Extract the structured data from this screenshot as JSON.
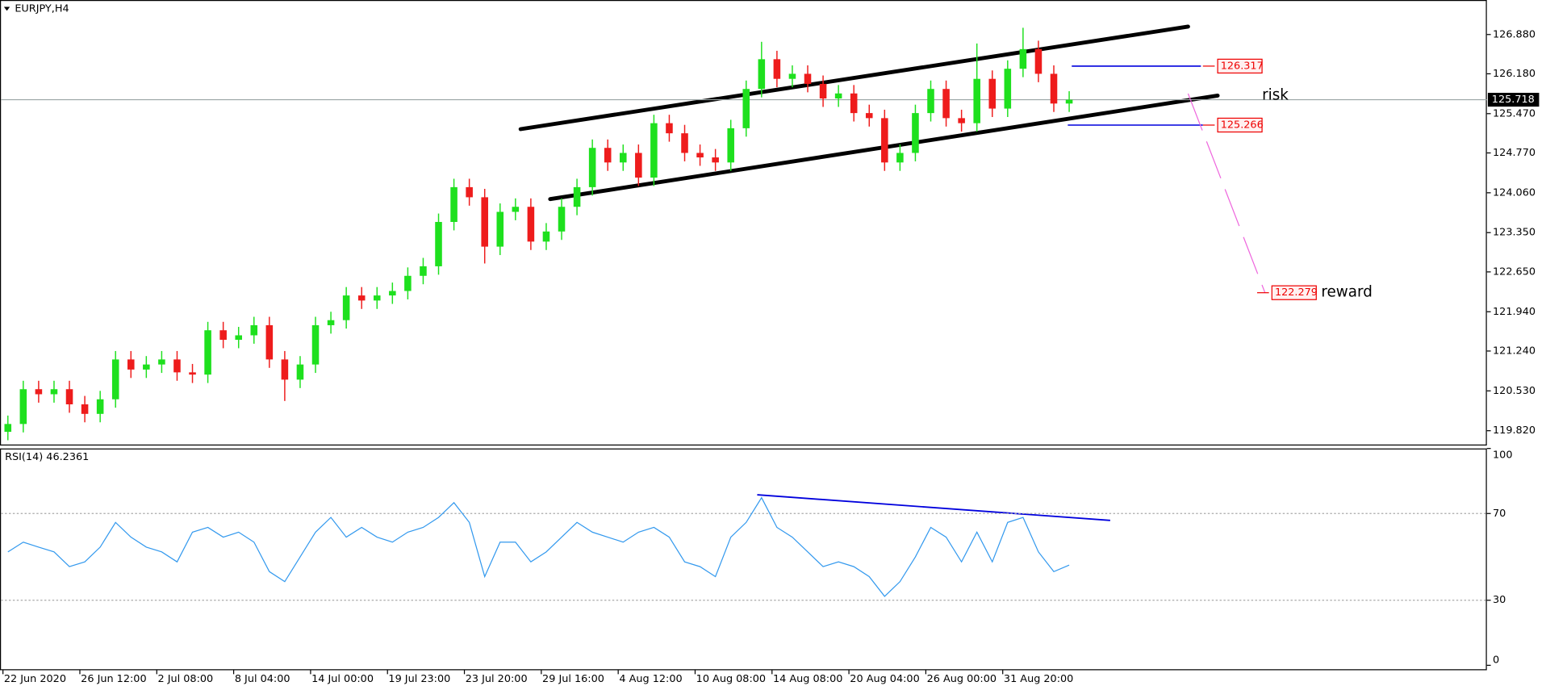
{
  "chart_data": {
    "type": "candlestick",
    "title": "EURJPY,H4",
    "categories": [
      "22 Jun 2020",
      null,
      null,
      null,
      null,
      "26 Jun 12:00",
      null,
      null,
      null,
      null,
      "2 Jul 08:00",
      null,
      null,
      null,
      null,
      "8 Jul 04:00",
      null,
      null,
      null,
      null,
      "14 Jul 00:00",
      null,
      null,
      null,
      null,
      "19 Jul 23:00",
      null,
      null,
      null,
      null,
      "23 Jul 20:00",
      null,
      null,
      null,
      null,
      "29 Jul 16:00",
      null,
      null,
      null,
      null,
      "4 Aug 12:00",
      null,
      null,
      null,
      null,
      "10 Aug 08:00",
      null,
      null,
      null,
      null,
      "14 Aug 08:00",
      null,
      null,
      null,
      null,
      "20 Aug 04:00",
      null,
      null,
      null,
      null,
      "26 Aug 00:00",
      null,
      null,
      null,
      null,
      "31 Aug 20:00",
      null,
      null,
      null,
      null
    ],
    "open": [
      119.8,
      119.94,
      120.56,
      120.47,
      120.56,
      120.29,
      120.12,
      120.38,
      121.09,
      120.91,
      121.0,
      121.09,
      120.86,
      120.82,
      121.61,
      121.44,
      121.52,
      121.7,
      121.09,
      120.73,
      121.0,
      121.7,
      121.79,
      122.23,
      122.14,
      122.23,
      122.31,
      122.58,
      122.75,
      123.54,
      124.16,
      123.98,
      123.1,
      123.72,
      123.81,
      123.19,
      123.37,
      123.81,
      124.16,
      124.86,
      124.6,
      124.77,
      124.33,
      125.3,
      125.12,
      124.77,
      124.69,
      124.6,
      125.21,
      125.91,
      126.44,
      126.09,
      126.18,
      126.0,
      125.74,
      125.83,
      125.48,
      125.39,
      124.6,
      124.77,
      125.48,
      125.91,
      125.39,
      125.3,
      126.09,
      125.56,
      126.27,
      126.62,
      126.18,
      125.65
    ],
    "high": [
      120.09,
      120.71,
      120.71,
      120.71,
      120.71,
      120.44,
      120.53,
      121.24,
      121.24,
      121.15,
      121.24,
      121.24,
      121.01,
      121.76,
      121.76,
      121.67,
      121.85,
      121.85,
      121.24,
      121.15,
      121.85,
      121.94,
      122.38,
      122.38,
      122.38,
      122.46,
      122.73,
      122.9,
      123.69,
      124.31,
      124.31,
      124.13,
      123.87,
      123.96,
      123.96,
      123.52,
      123.96,
      124.31,
      125.01,
      125.01,
      124.92,
      124.92,
      125.45,
      125.45,
      125.27,
      124.92,
      124.84,
      125.36,
      126.06,
      126.75,
      126.59,
      126.33,
      126.33,
      126.15,
      125.98,
      125.98,
      125.63,
      125.54,
      124.92,
      125.63,
      126.06,
      126.06,
      125.54,
      126.72,
      126.24,
      126.42,
      127.0,
      126.77,
      126.33,
      125.87
    ],
    "low": [
      119.65,
      119.79,
      120.32,
      120.32,
      120.14,
      119.97,
      119.97,
      120.23,
      120.76,
      120.76,
      120.85,
      120.71,
      120.67,
      120.67,
      121.29,
      121.29,
      121.37,
      120.94,
      120.35,
      120.58,
      120.85,
      121.55,
      121.64,
      121.99,
      121.99,
      122.08,
      122.16,
      122.43,
      122.6,
      123.39,
      123.83,
      122.8,
      122.95,
      123.57,
      123.04,
      123.04,
      123.22,
      123.66,
      124.01,
      124.45,
      124.45,
      124.18,
      124.18,
      124.97,
      124.62,
      124.54,
      124.45,
      124.45,
      125.06,
      125.76,
      125.94,
      125.94,
      125.85,
      125.59,
      125.59,
      125.33,
      125.24,
      124.45,
      124.45,
      124.62,
      125.33,
      125.24,
      125.15,
      125.15,
      125.41,
      125.41,
      126.12,
      126.03,
      125.5,
      125.5
    ],
    "close": [
      119.94,
      120.56,
      120.47,
      120.56,
      120.29,
      120.12,
      120.38,
      121.09,
      120.91,
      121.0,
      121.09,
      120.86,
      120.82,
      121.61,
      121.44,
      121.52,
      121.7,
      121.09,
      120.73,
      121.0,
      121.7,
      121.79,
      122.23,
      122.14,
      122.23,
      122.31,
      122.58,
      122.75,
      123.54,
      124.16,
      123.98,
      123.1,
      123.72,
      123.81,
      123.19,
      123.37,
      123.81,
      124.16,
      124.86,
      124.6,
      124.77,
      124.33,
      125.3,
      125.12,
      124.77,
      124.69,
      124.6,
      125.21,
      125.91,
      126.44,
      126.09,
      126.18,
      126.0,
      125.74,
      125.83,
      125.48,
      125.39,
      124.6,
      124.77,
      125.48,
      125.91,
      125.39,
      125.3,
      126.09,
      125.56,
      126.27,
      126.62,
      126.18,
      125.65,
      125.718
    ],
    "up_color": "#1ee01e",
    "down_color": "#ee1c1c",
    "ylim": [
      119.574,
      127.495
    ],
    "yticks": [
      {
        "value": 126.88,
        "label": "126.880"
      },
      {
        "value": 126.18,
        "label": "126.180"
      },
      {
        "value": 125.47,
        "label": "125.470"
      },
      {
        "value": 124.77,
        "label": "124.770"
      },
      {
        "value": 124.06,
        "label": "124.060"
      },
      {
        "value": 123.35,
        "label": "123.350"
      },
      {
        "value": 122.65,
        "label": "122.650"
      },
      {
        "value": 121.94,
        "label": "121.940"
      },
      {
        "value": 121.24,
        "label": "121.240"
      },
      {
        "value": 120.53,
        "label": "120.530"
      },
      {
        "value": 119.82,
        "label": "119.820"
      }
    ],
    "current_price": 125.718,
    "levels": [
      126.317,
      125.266,
      122.279
    ],
    "annotations": [
      "risk",
      "reward"
    ],
    "rsi": {
      "label": "RSI(14) 46.2361",
      "color": "#3399ee",
      "values": [
        52.3,
        56.8,
        54.5,
        52.3,
        45.5,
        47.7,
        54.5,
        65.9,
        59.1,
        54.5,
        52.3,
        47.7,
        61.4,
        63.6,
        59.1,
        61.4,
        56.8,
        43.2,
        38.6,
        50.0,
        61.4,
        68.2,
        59.1,
        63.6,
        59.1,
        56.8,
        61.4,
        63.6,
        68.2,
        75.0,
        65.9,
        40.9,
        56.8,
        56.8,
        47.7,
        52.3,
        59.1,
        65.9,
        61.4,
        59.1,
        56.8,
        61.4,
        63.6,
        59.1,
        47.7,
        45.5,
        40.9,
        59.1,
        65.9,
        77.3,
        63.6,
        59.1,
        52.3,
        45.5,
        47.7,
        45.5,
        40.9,
        31.8,
        38.6,
        50.0,
        63.6,
        59.1,
        47.7,
        61.4,
        47.7,
        65.9,
        68.2,
        52.3,
        43.2,
        46.2361
      ],
      "ylim": [
        0,
        100
      ],
      "yticks": [
        100,
        70,
        30,
        0
      ]
    }
  }
}
